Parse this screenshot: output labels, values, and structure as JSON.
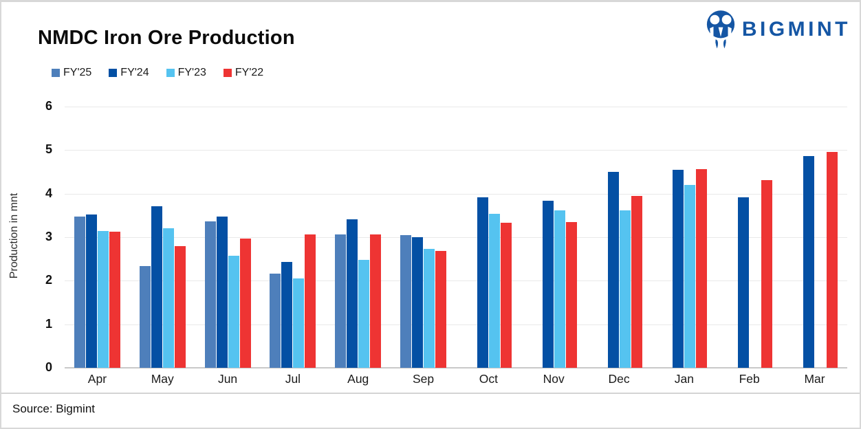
{
  "page": {
    "title": "NMDC Iron Ore Production",
    "source": "Source: Bigmint",
    "brand_name": "BIGMINT",
    "brand_color": "#1556A4"
  },
  "chart_data": {
    "type": "bar",
    "title": "NMDC Iron Ore Production",
    "categories": [
      "Apr",
      "May",
      "Jun",
      "Jul",
      "Aug",
      "Sep",
      "Oct",
      "Nov",
      "Dec",
      "Jan",
      "Feb",
      "Mar"
    ],
    "series": [
      {
        "name": "FY'25",
        "color": "#4E7FBB",
        "values": [
          3.48,
          2.33,
          3.36,
          2.16,
          3.07,
          3.05,
          null,
          null,
          null,
          null,
          null,
          null
        ]
      },
      {
        "name": "FY'24",
        "color": "#0450A4",
        "values": [
          3.52,
          3.71,
          3.47,
          2.43,
          3.41,
          3.0,
          3.92,
          3.84,
          4.5,
          4.55,
          3.92,
          4.86
        ]
      },
      {
        "name": "FY'23",
        "color": "#55C3F0",
        "values": [
          3.15,
          3.21,
          2.57,
          2.05,
          2.48,
          2.73,
          3.54,
          3.61,
          3.62,
          4.2,
          null,
          null
        ]
      },
      {
        "name": "FY'22",
        "color": "#EE3433",
        "values": [
          3.12,
          2.79,
          2.97,
          3.07,
          3.07,
          2.68,
          3.33,
          3.35,
          3.95,
          4.57,
          4.31,
          4.96
        ]
      }
    ],
    "xlabel": "",
    "ylabel": "Production in mnt",
    "ylim": [
      0,
      6
    ],
    "yticks": [
      0,
      1,
      2,
      3,
      4,
      5,
      6
    ],
    "grid": true,
    "legend_position": "top-left"
  }
}
